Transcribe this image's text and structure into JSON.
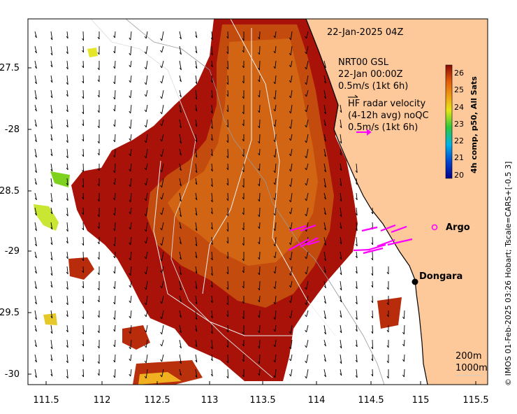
{
  "map": {
    "timestamp": "22-Jan-2025 04Z",
    "model_label": {
      "line1": "NRT00 GSL",
      "line2": "22-Jan 00:00Z",
      "line3": "0.5m/s (1kt 6h)"
    },
    "radar_label": {
      "line1": "HF radar velocity",
      "line2": "(4-12h avg) noQC",
      "line3": "0.5m/s (1kt 6h)"
    },
    "places": [
      {
        "name": "Argo",
        "lon": 115.05,
        "lat": -28.83,
        "marker": "circle"
      },
      {
        "name": "Dongara",
        "lon": 114.93,
        "lat": -29.25,
        "marker": "dot"
      }
    ],
    "contours": [
      "200m",
      "1000m"
    ],
    "credit": "© IMOS 01-Feb-2025 03:26 Hobart; Tscale=CARS+[-0.5 3]",
    "x_axis": {
      "min": 111.33,
      "max": 115.62,
      "ticks": [
        "111.5",
        "112",
        "112.5",
        "113",
        "113.5",
        "114",
        "114.5",
        "115",
        "115.5"
      ]
    },
    "y_axis": {
      "min": -30.1,
      "max": -27.1,
      "ticks": [
        "-27.5",
        "-28",
        "-28.5",
        "-29",
        "-29.5",
        "-30"
      ]
    }
  },
  "colorbar": {
    "title": "4h comp, p50, All Sats",
    "min": 20,
    "max": 26.5,
    "ticks": [
      "26",
      "25",
      "24",
      "23",
      "22",
      "21",
      "20"
    ]
  },
  "colors": {
    "land": "#fdc89a",
    "arrow_radar": "#ff00ff",
    "sst_warm": "#a81208",
    "sst_mid": "#d06010",
    "coast": "#000000"
  }
}
